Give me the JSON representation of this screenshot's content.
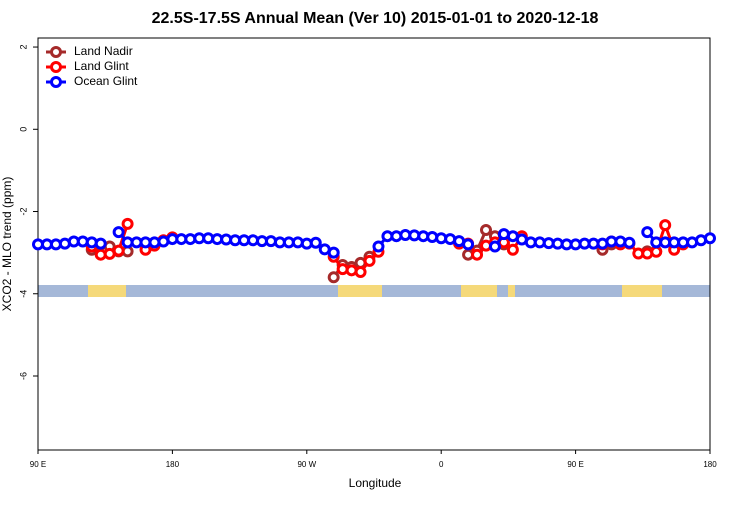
{
  "chart_data": {
    "type": "line",
    "title": "22.5S-17.5S Annual Mean (Ver 10)   2015-01-01 to 2020-12-18",
    "x_label": "Longitude",
    "y_label": "XCO2 - MLO trend (ppm)",
    "x": [
      90,
      96,
      102,
      108,
      114,
      120,
      126,
      132,
      138,
      144,
      150,
      156,
      162,
      168,
      174,
      180,
      186,
      192,
      198,
      204,
      210,
      216,
      222,
      228,
      234,
      240,
      246,
      252,
      258,
      264,
      270,
      276,
      282,
      288,
      294,
      300,
      306,
      312,
      318,
      324,
      330,
      336,
      342,
      348,
      354,
      360,
      366,
      372,
      378,
      384,
      390,
      396,
      402,
      408,
      414,
      420,
      426,
      432,
      438,
      444,
      450,
      456,
      462,
      468,
      474,
      480,
      486,
      492,
      498,
      504,
      510,
      516,
      522,
      528,
      534,
      540
    ],
    "series": [
      {
        "name": "Land Nadir",
        "color": "#a52a2a",
        "values": [
          null,
          null,
          null,
          null,
          null,
          null,
          -2.93,
          -2.8,
          -2.85,
          -2.97,
          -2.97,
          null,
          null,
          null,
          null,
          null,
          null,
          null,
          null,
          null,
          null,
          null,
          null,
          null,
          null,
          null,
          null,
          null,
          null,
          null,
          null,
          null,
          null,
          -3.6,
          -3.3,
          -3.35,
          -3.25,
          -3.1,
          null,
          null,
          null,
          null,
          null,
          null,
          null,
          null,
          null,
          null,
          -3.05,
          -2.95,
          -2.45,
          -2.6,
          -2.8,
          null,
          null,
          null,
          null,
          null,
          null,
          null,
          null,
          null,
          null,
          -2.93,
          -2.8,
          null,
          null,
          null,
          -2.97,
          -2.97,
          null,
          null,
          null,
          null,
          null,
          null
        ]
      },
      {
        "name": "Land Glint",
        "color": "#ff0000",
        "values": [
          null,
          null,
          null,
          null,
          null,
          null,
          -2.85,
          -3.05,
          -3.03,
          -2.95,
          -2.3,
          null,
          -2.93,
          -2.83,
          -2.7,
          -2.63,
          null,
          null,
          null,
          null,
          null,
          null,
          null,
          null,
          null,
          null,
          null,
          null,
          null,
          null,
          null,
          null,
          null,
          -3.1,
          -3.4,
          -3.43,
          -3.47,
          -3.2,
          -2.98,
          null,
          null,
          null,
          null,
          null,
          null,
          null,
          null,
          -2.78,
          -2.78,
          -3.05,
          -2.83,
          -2.75,
          -2.75,
          -2.93,
          -2.6,
          null,
          null,
          null,
          null,
          null,
          null,
          null,
          null,
          -2.8,
          -2.73,
          -2.8,
          -2.78,
          -3.02,
          -3.02,
          -2.98,
          -2.33,
          -2.93,
          -2.8,
          null,
          null,
          null
        ]
      },
      {
        "name": "Ocean Glint",
        "color": "#0000ff",
        "values": [
          -2.8,
          -2.8,
          -2.8,
          -2.78,
          -2.73,
          -2.73,
          -2.75,
          -2.78,
          null,
          -2.5,
          -2.75,
          -2.75,
          -2.75,
          -2.75,
          -2.73,
          -2.67,
          -2.67,
          -2.67,
          -2.65,
          -2.65,
          -2.67,
          -2.68,
          -2.7,
          -2.7,
          -2.7,
          -2.72,
          -2.72,
          -2.75,
          -2.75,
          -2.75,
          -2.78,
          -2.76,
          -2.92,
          -3.0,
          null,
          null,
          null,
          null,
          -2.85,
          -2.6,
          -2.6,
          -2.57,
          -2.58,
          -2.6,
          -2.62,
          -2.65,
          -2.67,
          -2.72,
          -2.8,
          null,
          null,
          -2.85,
          -2.55,
          -2.6,
          -2.68,
          -2.75,
          -2.75,
          -2.77,
          -2.78,
          -2.8,
          -2.8,
          -2.78,
          -2.78,
          -2.78,
          -2.73,
          -2.73,
          -2.76,
          null,
          -2.5,
          -2.75,
          -2.75,
          -2.75,
          -2.75,
          -2.75,
          -2.7,
          -2.65
        ]
      }
    ],
    "xlim": [
      90,
      540
    ],
    "ylim": [
      -7.8,
      2.22
    ],
    "xticks": [
      {
        "value": 90,
        "label": "90 E"
      },
      180,
      {
        "value": 270,
        "label": "90 W"
      },
      {
        "value": 360,
        "label": "0"
      },
      {
        "value": 450,
        "label": "90 E"
      },
      {
        "value": 540,
        "label": "180"
      }
    ],
    "yticks": [
      -6,
      -4,
      -2,
      0,
      2
    ],
    "legend": "top-left"
  }
}
